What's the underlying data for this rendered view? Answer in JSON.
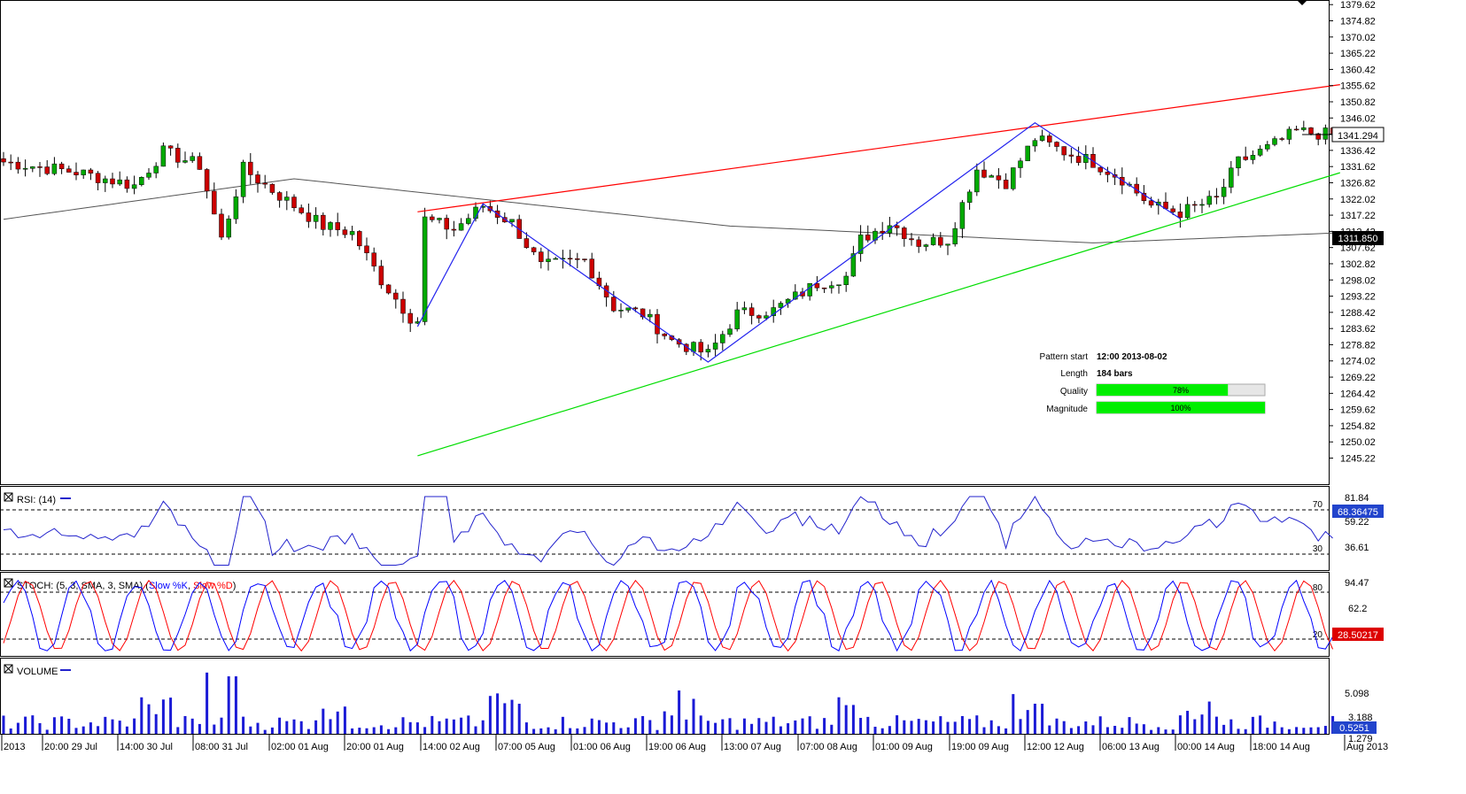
{
  "chart_data": [
    {
      "type": "candlestick",
      "panel": "price",
      "title": "",
      "y_ticks": [
        "1379.62",
        "1374.82",
        "1370.02",
        "1365.22",
        "1360.42",
        "1355.62",
        "1350.82",
        "1346.02",
        "1341.22",
        "1336.42",
        "1331.62",
        "1326.82",
        "1322.02",
        "1317.22",
        "1312.42",
        "1307.62",
        "1302.82",
        "1298.02",
        "1293.22",
        "1288.42",
        "1283.62",
        "1278.82",
        "1274.02",
        "1269.22",
        "1264.42",
        "1259.62",
        "1254.82",
        "1250.02",
        "1245.22"
      ],
      "ylim": [
        1240.9,
        1380.2
      ],
      "last_price": "1341.294",
      "ma_last": "1311.850",
      "resistance_line": {
        "from": [
          57,
          1318.2
        ],
        "to": [
          184,
          1355.9
        ],
        "color": "#ff0000"
      },
      "support_line": {
        "from": [
          57,
          1245.9
        ],
        "to": [
          184,
          1329.8
        ],
        "color": "#00dd00"
      },
      "zigzag": [
        [
          57,
          1284.2
        ],
        [
          66,
          1320.6
        ],
        [
          97,
          1273.7
        ],
        [
          142,
          1344.6
        ],
        [
          162,
          1316.2
        ]
      ],
      "pattern_info": {
        "pattern_start_label": "Pattern start",
        "pattern_start": "12:00 2013-08-02",
        "length_label": "Length",
        "length": "184 bars",
        "quality_label": "Quality",
        "quality": "78%",
        "quality_value": 0.78,
        "magnitude_label": "Magnitude",
        "magnitude": "100%",
        "magnitude_value": 1.0
      }
    },
    {
      "type": "line",
      "panel": "rsi",
      "label": "RSI: (14)",
      "y_ticks": [
        "81.84",
        "59.22",
        "36.61"
      ],
      "levels": [
        "70",
        "30"
      ],
      "last_value": "68.36475"
    },
    {
      "type": "line",
      "panel": "stoch",
      "label": "STOCH: (5, 3, SMA, 3, SMA)",
      "series": [
        {
          "name": "Slow %K",
          "color": "#0000ff"
        },
        {
          "name": "Slow %D",
          "color": "#ff0000"
        }
      ],
      "y_ticks": [
        "94.47",
        "62.2"
      ],
      "levels": [
        "80",
        "20"
      ],
      "last_value": "28.50217"
    },
    {
      "type": "bar",
      "panel": "volume",
      "label": "VOLUME",
      "y_ticks": [
        "5.098",
        "3.188",
        "1.279"
      ],
      "last_value": "0.5251"
    }
  ],
  "x_labels": [
    "2013",
    "20:00 29 Jul",
    "14:00 30 Jul",
    "08:00 31 Jul",
    "02:00 01 Aug",
    "20:00 01 Aug",
    "14:00 02 Aug",
    "07:00 05 Aug",
    "01:00 06 Aug",
    "19:00 06 Aug",
    "13:00 07 Aug",
    "07:00 08 Aug",
    "01:00 09 Aug",
    "19:00 09 Aug",
    "12:00 12 Aug",
    "06:00 13 Aug",
    "00:00 14 Aug",
    "18:00 14 Aug",
    "Aug 2013"
  ],
  "colors": {
    "up": "#00aa00",
    "down": "#cc0000",
    "resistance": "#ff0000",
    "support": "#00dd00",
    "zigzag": "#2222ee",
    "ma": "#555555",
    "rsi": "#2222cc",
    "vol": "#1a1ad6"
  }
}
